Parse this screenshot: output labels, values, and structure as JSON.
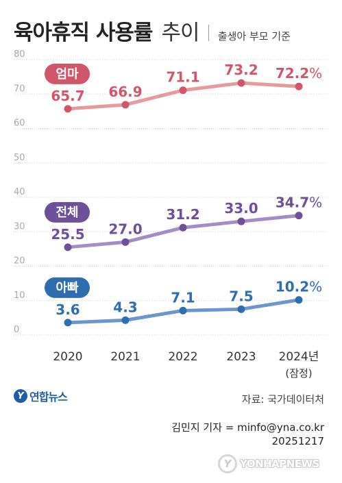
{
  "header": {
    "title": "육아휴직 사용률",
    "title_suffix": "추이",
    "subtitle": "출생아 부모 기준"
  },
  "chart_data": {
    "type": "line",
    "categories": [
      "2020",
      "2021",
      "2022",
      "2023",
      "2024년"
    ],
    "category_note": "(잠정)",
    "ylim": [
      0,
      80
    ],
    "yticks": [
      "0",
      "10",
      "20",
      "30",
      "40",
      "50",
      "60",
      "70",
      "80"
    ],
    "series": [
      {
        "name": "엄마",
        "values": [
          65.7,
          66.9,
          71.1,
          73.2,
          72.2
        ],
        "labels": [
          "65.7",
          "66.9",
          "71.1",
          "73.2",
          "72.2"
        ],
        "color": "#d2566b",
        "line_color": "#e79a9b"
      },
      {
        "name": "전체",
        "values": [
          25.5,
          27.0,
          31.2,
          33.0,
          34.7
        ],
        "labels": [
          "25.5",
          "27.0",
          "31.2",
          "33.0",
          "34.7"
        ],
        "color": "#6e4f9a",
        "line_color": "#a48cc4"
      },
      {
        "name": "아빠",
        "values": [
          3.6,
          4.3,
          7.1,
          7.5,
          10.2
        ],
        "labels": [
          "3.6",
          "4.3",
          "7.1",
          "7.5",
          "10.2"
        ],
        "color": "#2f6db1",
        "line_color": "#6a96cc"
      }
    ],
    "last_value_suffix": "%",
    "grid": true
  },
  "footer": {
    "logo_text": "연합뉴스",
    "source": "자료: 국가데이터처",
    "reporter": "김민지 기자 = minfo@yna.co.kr",
    "date": "20251217",
    "watermark": "YONHAPNEWS"
  }
}
